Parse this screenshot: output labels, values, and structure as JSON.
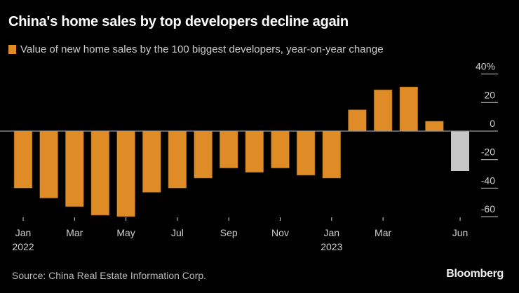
{
  "header": {
    "title": "China's home sales by top developers decline again",
    "legend_label": "Value of new home sales by the 100 biggest developers, year-on-year change"
  },
  "footer": {
    "source": "Source: China Real Estate Information Corp.",
    "brand": "Bloomberg"
  },
  "colors": {
    "bar": "#e08c26",
    "highlight_bar": "#c6c6c6",
    "background": "#000000",
    "axis": "#9a9a9a"
  },
  "chart_data": {
    "type": "bar",
    "title": "China's home sales by top developers decline again",
    "legend": [
      "Value of new home sales by the 100 biggest developers, year-on-year change"
    ],
    "xlabel": "",
    "ylabel": "%",
    "ylim": [
      -60,
      40
    ],
    "yticks": [
      40,
      20,
      0,
      -20,
      -40,
      -60
    ],
    "ytick_labels": [
      "40%",
      "20",
      "0",
      "-20",
      "-40",
      "-60"
    ],
    "y_axis_position": "right",
    "grid": false,
    "categories": [
      "Jan 2022",
      "Feb 2022",
      "Mar 2022",
      "Apr 2022",
      "May 2022",
      "Jun 2022",
      "Jul 2022",
      "Aug 2022",
      "Sep 2022",
      "Oct 2022",
      "Nov 2022",
      "Dec 2022",
      "Jan 2023",
      "Feb 2023",
      "Mar 2023",
      "Apr 2023",
      "May 2023",
      "Jun 2023"
    ],
    "values": [
      -40,
      -47,
      -53,
      -59,
      -60,
      -43,
      -40,
      -33,
      -26,
      -29,
      -26,
      -31,
      -33,
      15,
      29,
      31,
      7,
      -28
    ],
    "highlight_index": 17,
    "xtick_labels": [
      {
        "index": 0,
        "label": "Jan",
        "sub": "2022"
      },
      {
        "index": 2,
        "label": "Mar",
        "sub": ""
      },
      {
        "index": 4,
        "label": "May",
        "sub": ""
      },
      {
        "index": 6,
        "label": "Jul",
        "sub": ""
      },
      {
        "index": 8,
        "label": "Sep",
        "sub": ""
      },
      {
        "index": 10,
        "label": "Nov",
        "sub": ""
      },
      {
        "index": 12,
        "label": "Jan",
        "sub": "2023"
      },
      {
        "index": 14,
        "label": "Mar",
        "sub": ""
      },
      {
        "index": 17,
        "label": "Jun",
        "sub": ""
      }
    ]
  }
}
